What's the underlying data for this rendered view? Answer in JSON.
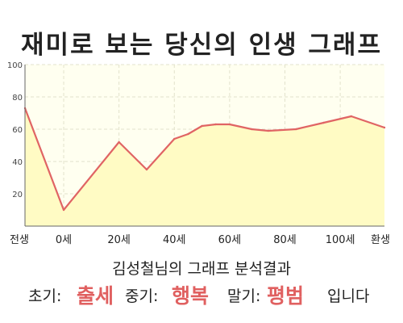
{
  "title": "재미로 보는 당신의 인생 그래프",
  "summary": "김성철님의 그래프 분석결과",
  "phases": {
    "early_label": "초기:",
    "early_value": "출세",
    "mid_label": "중기:",
    "mid_value": "행복",
    "late_label": "말기:",
    "late_value": "평범",
    "suffix": "입니다"
  },
  "colors": {
    "line": "#e06464",
    "area": "#fffbc4",
    "plot_background": "#fffff0",
    "accent_text": "#e06060"
  },
  "chart_data": {
    "type": "area",
    "title": "재미로 보는 당신의 인생 그래프",
    "xlabel": "",
    "ylabel": "",
    "x_ticks": [
      "전생",
      "0세",
      "20세",
      "40세",
      "60세",
      "80세",
      "100세",
      "환생"
    ],
    "ylim": [
      0,
      100
    ],
    "y_ticks": [
      20,
      40,
      60,
      80,
      100
    ],
    "grid": true,
    "x": [
      -14,
      0,
      20,
      30,
      40,
      45,
      50,
      55,
      60,
      68,
      74,
      84,
      94,
      104,
      116
    ],
    "values": [
      73,
      10,
      52,
      35,
      54,
      57,
      62,
      63,
      63,
      60,
      59,
      60,
      64,
      68,
      61
    ]
  }
}
